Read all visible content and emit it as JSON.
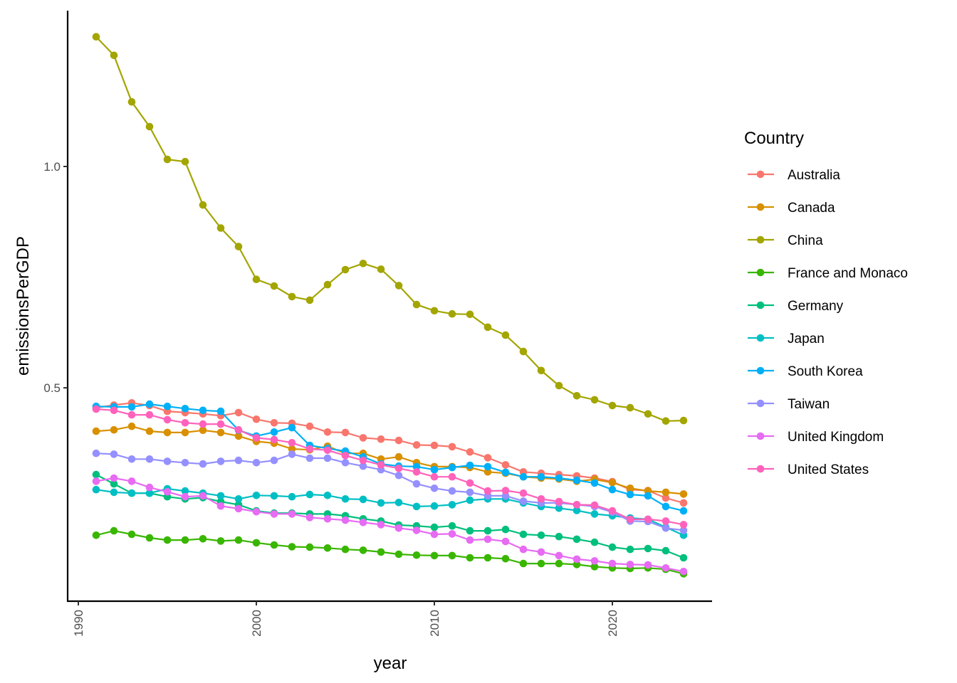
{
  "chart_data": {
    "type": "line",
    "title": "",
    "xlabel": "year",
    "ylabel": "emissionsPerGDP",
    "xlim": [
      1989.4,
      2025.6
    ],
    "ylim": [
      0.018,
      1.352
    ],
    "x_ticks": [
      1990,
      2000,
      2010,
      2020
    ],
    "x_tick_labels": [
      "1990",
      "2000",
      "2010",
      "2020"
    ],
    "y_ticks": [
      0.5,
      1.0
    ],
    "y_tick_labels": [
      "0.5",
      "1.0"
    ],
    "grid": false,
    "legend": {
      "title": "Country",
      "placement": "right"
    },
    "x": [
      1991,
      1992,
      1993,
      1994,
      1995,
      1996,
      1997,
      1998,
      1999,
      2000,
      2001,
      2002,
      2003,
      2004,
      2005,
      2006,
      2007,
      2008,
      2009,
      2010,
      2011,
      2012,
      2013,
      2014,
      2015,
      2016,
      2017,
      2018,
      2019,
      2020,
      2021,
      2022,
      2023,
      2024
    ],
    "series": [
      {
        "name": "Australia",
        "color": "#F8766D",
        "values": [
          0.455,
          0.461,
          0.466,
          0.46,
          0.447,
          0.444,
          0.441,
          0.437,
          0.444,
          0.429,
          0.421,
          0.42,
          0.413,
          0.4,
          0.399,
          0.387,
          0.384,
          0.381,
          0.371,
          0.37,
          0.367,
          0.355,
          0.342,
          0.326,
          0.31,
          0.307,
          0.304,
          0.301,
          0.296,
          0.288,
          0.27,
          0.268,
          0.251,
          0.24
        ]
      },
      {
        "name": "Canada",
        "color": "#D89000",
        "values": [
          0.402,
          0.405,
          0.413,
          0.402,
          0.399,
          0.399,
          0.404,
          0.399,
          0.391,
          0.379,
          0.375,
          0.362,
          0.36,
          0.368,
          0.352,
          0.352,
          0.339,
          0.344,
          0.331,
          0.322,
          0.322,
          0.32,
          0.31,
          0.307,
          0.299,
          0.296,
          0.294,
          0.289,
          0.293,
          0.286,
          0.273,
          0.267,
          0.264,
          0.26
        ]
      },
      {
        "name": "China",
        "color": "#A3A500",
        "values": [
          1.293,
          1.251,
          1.146,
          1.09,
          1.016,
          1.011,
          0.913,
          0.861,
          0.819,
          0.745,
          0.73,
          0.706,
          0.698,
          0.733,
          0.767,
          0.781,
          0.768,
          0.731,
          0.688,
          0.674,
          0.667,
          0.666,
          0.637,
          0.619,
          0.582,
          0.539,
          0.505,
          0.482,
          0.473,
          0.46,
          0.455,
          0.441,
          0.425,
          0.426
        ]
      },
      {
        "name": "France and Monaco",
        "color": "#39B600",
        "values": [
          0.167,
          0.177,
          0.169,
          0.161,
          0.156,
          0.156,
          0.159,
          0.154,
          0.156,
          0.15,
          0.145,
          0.141,
          0.14,
          0.138,
          0.135,
          0.133,
          0.129,
          0.124,
          0.122,
          0.121,
          0.121,
          0.116,
          0.116,
          0.114,
          0.103,
          0.103,
          0.103,
          0.101,
          0.096,
          0.093,
          0.092,
          0.093,
          0.09,
          0.08
        ]
      },
      {
        "name": "Germany",
        "color": "#00BF7D",
        "values": [
          0.304,
          0.283,
          0.262,
          0.262,
          0.254,
          0.249,
          0.252,
          0.243,
          0.236,
          0.222,
          0.217,
          0.217,
          0.215,
          0.215,
          0.211,
          0.204,
          0.199,
          0.19,
          0.188,
          0.185,
          0.188,
          0.177,
          0.177,
          0.18,
          0.169,
          0.167,
          0.164,
          0.158,
          0.151,
          0.14,
          0.135,
          0.137,
          0.132,
          0.116
        ]
      },
      {
        "name": "Japan",
        "color": "#00BFC4",
        "values": [
          0.27,
          0.264,
          0.262,
          0.262,
          0.272,
          0.267,
          0.262,
          0.256,
          0.249,
          0.257,
          0.256,
          0.254,
          0.259,
          0.257,
          0.249,
          0.248,
          0.24,
          0.241,
          0.232,
          0.233,
          0.236,
          0.246,
          0.249,
          0.249,
          0.24,
          0.232,
          0.228,
          0.223,
          0.215,
          0.211,
          0.206,
          0.203,
          0.185,
          0.167
        ]
      },
      {
        "name": "South Korea",
        "color": "#00B0F6",
        "values": [
          0.458,
          0.457,
          0.457,
          0.463,
          0.458,
          0.453,
          0.449,
          0.447,
          0.404,
          0.391,
          0.4,
          0.41,
          0.37,
          0.363,
          0.357,
          0.344,
          0.328,
          0.323,
          0.322,
          0.315,
          0.32,
          0.325,
          0.322,
          0.309,
          0.299,
          0.299,
          0.296,
          0.291,
          0.285,
          0.27,
          0.259,
          0.256,
          0.232,
          0.222
        ]
      },
      {
        "name": "Taiwan",
        "color": "#9590FF",
        "values": [
          0.352,
          0.35,
          0.339,
          0.339,
          0.334,
          0.331,
          0.328,
          0.334,
          0.336,
          0.331,
          0.336,
          0.35,
          0.341,
          0.341,
          0.331,
          0.323,
          0.315,
          0.302,
          0.283,
          0.273,
          0.267,
          0.264,
          0.256,
          0.256,
          0.244,
          0.24,
          0.24,
          0.236,
          0.232,
          0.219,
          0.199,
          0.198,
          0.183,
          0.178
        ]
      },
      {
        "name": "United Kingdom",
        "color": "#E76BF3",
        "values": [
          0.289,
          0.296,
          0.289,
          0.275,
          0.265,
          0.254,
          0.256,
          0.233,
          0.227,
          0.22,
          0.215,
          0.215,
          0.207,
          0.204,
          0.201,
          0.196,
          0.191,
          0.183,
          0.178,
          0.169,
          0.17,
          0.156,
          0.158,
          0.153,
          0.135,
          0.129,
          0.121,
          0.113,
          0.109,
          0.103,
          0.101,
          0.1,
          0.093,
          0.085
        ]
      },
      {
        "name": "United States",
        "color": "#FF62BC",
        "values": [
          0.452,
          0.449,
          0.439,
          0.439,
          0.428,
          0.421,
          0.418,
          0.418,
          0.405,
          0.387,
          0.383,
          0.376,
          0.362,
          0.359,
          0.347,
          0.336,
          0.326,
          0.318,
          0.31,
          0.299,
          0.299,
          0.285,
          0.267,
          0.268,
          0.262,
          0.249,
          0.243,
          0.236,
          0.235,
          0.222,
          0.203,
          0.203,
          0.199,
          0.191
        ]
      }
    ]
  }
}
